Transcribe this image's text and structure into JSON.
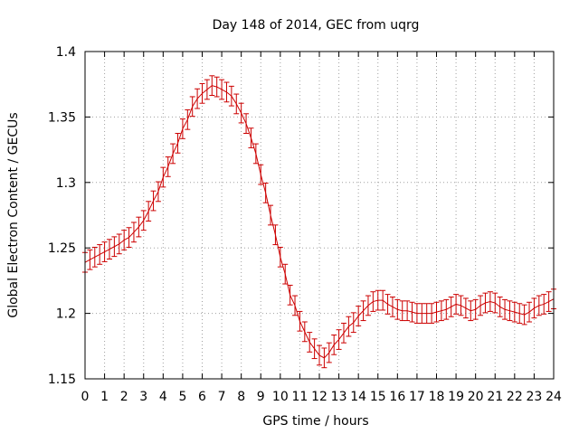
{
  "chart_data": {
    "type": "line",
    "title": "Day 148 of 2014, GEC from uqrg",
    "xlabel": "GPS time / hours",
    "ylabel": "Global Electron Content / GECUs",
    "xlim": [
      0,
      24
    ],
    "ylim": [
      1.15,
      1.4
    ],
    "x_ticks": [
      0,
      1,
      2,
      3,
      4,
      5,
      6,
      7,
      8,
      9,
      10,
      11,
      12,
      13,
      14,
      15,
      16,
      17,
      18,
      19,
      20,
      21,
      22,
      23,
      24
    ],
    "x_tick_labels": [
      "0",
      "1",
      "2",
      "3",
      "4",
      "5",
      "6",
      "7",
      "8",
      "9",
      "10",
      "11",
      "12",
      "13",
      "14",
      "15",
      "16",
      "17",
      "18",
      "19",
      "20",
      "21",
      "22",
      "23",
      "24"
    ],
    "y_ticks": [
      1.15,
      1.2,
      1.25,
      1.3,
      1.35,
      1.4
    ],
    "y_tick_labels": [
      "1.15",
      "1.2",
      "1.25",
      "1.3",
      "1.35",
      "1.4"
    ],
    "grid": true,
    "color": "#cc0000",
    "error_bar": 0.0075,
    "series": [
      {
        "x": [
          0,
          0.25,
          0.5,
          0.75,
          1,
          1.25,
          1.5,
          1.75,
          2,
          2.25,
          2.5,
          2.75,
          3,
          3.25,
          3.5,
          3.75,
          4,
          4.25,
          4.5,
          4.75,
          5,
          5.25,
          5.5,
          5.75,
          6,
          6.25,
          6.5,
          6.75,
          7,
          7.25,
          7.5,
          7.75,
          8,
          8.25,
          8.5,
          8.75,
          9,
          9.25,
          9.5,
          9.75,
          10,
          10.25,
          10.5,
          10.75,
          11,
          11.25,
          11.5,
          11.75,
          12,
          12.25,
          12.5,
          12.75,
          13,
          13.25,
          13.5,
          13.75,
          14,
          14.25,
          14.5,
          14.75,
          15,
          15.25,
          15.5,
          15.75,
          16,
          16.25,
          16.5,
          16.75,
          17,
          17.25,
          17.5,
          17.75,
          18,
          18.25,
          18.5,
          18.75,
          19,
          19.25,
          19.5,
          19.75,
          20,
          20.25,
          20.5,
          20.75,
          21,
          21.25,
          21.5,
          21.75,
          22,
          22.25,
          22.5,
          22.75,
          23,
          23.25,
          23.5,
          23.75,
          24
        ],
        "y": [
          1.239,
          1.241,
          1.243,
          1.245,
          1.247,
          1.249,
          1.251,
          1.253,
          1.256,
          1.258,
          1.262,
          1.266,
          1.271,
          1.278,
          1.286,
          1.293,
          1.304,
          1.312,
          1.322,
          1.33,
          1.341,
          1.348,
          1.358,
          1.364,
          1.368,
          1.371,
          1.374,
          1.373,
          1.371,
          1.369,
          1.366,
          1.36,
          1.353,
          1.345,
          1.334,
          1.322,
          1.306,
          1.292,
          1.275,
          1.26,
          1.243,
          1.23,
          1.214,
          1.206,
          1.194,
          1.186,
          1.178,
          1.173,
          1.168,
          1.166,
          1.17,
          1.176,
          1.18,
          1.185,
          1.19,
          1.193,
          1.198,
          1.202,
          1.206,
          1.209,
          1.21,
          1.21,
          1.207,
          1.205,
          1.203,
          1.202,
          1.202,
          1.201,
          1.2,
          1.2,
          1.2,
          1.2,
          1.201,
          1.202,
          1.203,
          1.205,
          1.207,
          1.206,
          1.204,
          1.202,
          1.203,
          1.206,
          1.208,
          1.209,
          1.208,
          1.205,
          1.203,
          1.202,
          1.201,
          1.2,
          1.199,
          1.201,
          1.204,
          1.206,
          1.207,
          1.209,
          1.211
        ]
      }
    ]
  }
}
